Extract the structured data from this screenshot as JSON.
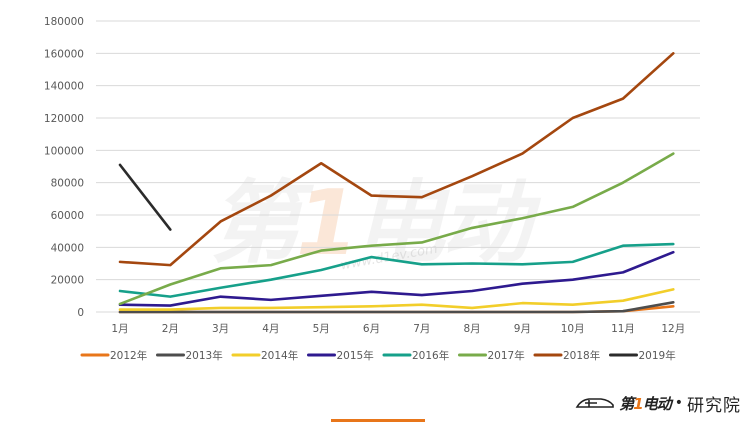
{
  "chart_data": {
    "type": "line",
    "title": "",
    "xlabel": "",
    "ylabel": "",
    "ylim": [
      0,
      180000
    ],
    "yticks": [
      0,
      20000,
      40000,
      60000,
      80000,
      100000,
      120000,
      140000,
      160000,
      180000
    ],
    "grid": true,
    "legend_position": "bottom",
    "categories": [
      "1月",
      "2月",
      "3月",
      "4月",
      "5月",
      "6月",
      "7月",
      "8月",
      "9月",
      "10月",
      "11月",
      "12月"
    ],
    "series": [
      {
        "name": "2012年",
        "color": "#e8761a",
        "values": [
          0,
          0,
          0,
          0,
          0,
          0,
          0,
          0,
          0,
          0,
          500,
          3500
        ]
      },
      {
        "name": "2013年",
        "color": "#4d4d4d",
        "values": [
          0,
          0,
          0,
          0,
          0,
          0,
          0,
          0,
          0,
          0,
          500,
          6000
        ]
      },
      {
        "name": "2014年",
        "color": "#f2ce2a",
        "values": [
          1500,
          1500,
          2500,
          2500,
          3000,
          3500,
          4500,
          2500,
          5500,
          4500,
          7000,
          14000
        ]
      },
      {
        "name": "2015年",
        "color": "#2e1a8f",
        "values": [
          4500,
          4000,
          9500,
          7500,
          10000,
          12500,
          10500,
          13000,
          17500,
          20000,
          24500,
          37000
        ]
      },
      {
        "name": "2016年",
        "color": "#16a08a",
        "values": [
          13000,
          9500,
          15000,
          20000,
          26000,
          34000,
          29500,
          30000,
          29500,
          31000,
          41000,
          42000
        ]
      },
      {
        "name": "2017年",
        "color": "#78ab4a",
        "values": [
          5000,
          17000,
          27000,
          29000,
          38000,
          41000,
          43000,
          52000,
          58000,
          65000,
          80000,
          98000
        ]
      },
      {
        "name": "2018年",
        "color": "#a4470f",
        "values": [
          31000,
          29000,
          56000,
          72000,
          92000,
          72000,
          71000,
          84000,
          98000,
          120000,
          132000,
          160000
        ]
      },
      {
        "name": "2019年",
        "color": "#2b2b2b",
        "values": [
          91000,
          51000
        ]
      }
    ]
  },
  "branding": {
    "logo_brand_prefix": "第",
    "logo_brand_one": "1",
    "logo_brand_suffix": "电动",
    "logo_dot": "•",
    "logo_institute": "研究院",
    "watermark_prefix": "第",
    "watermark_one": "1",
    "watermark_suffix": "电动",
    "watermark_url": "www.d1ev.com"
  },
  "colors": {
    "grid": "#d9d9d9",
    "axis_text": "#595959",
    "accent": "#e8761a"
  }
}
